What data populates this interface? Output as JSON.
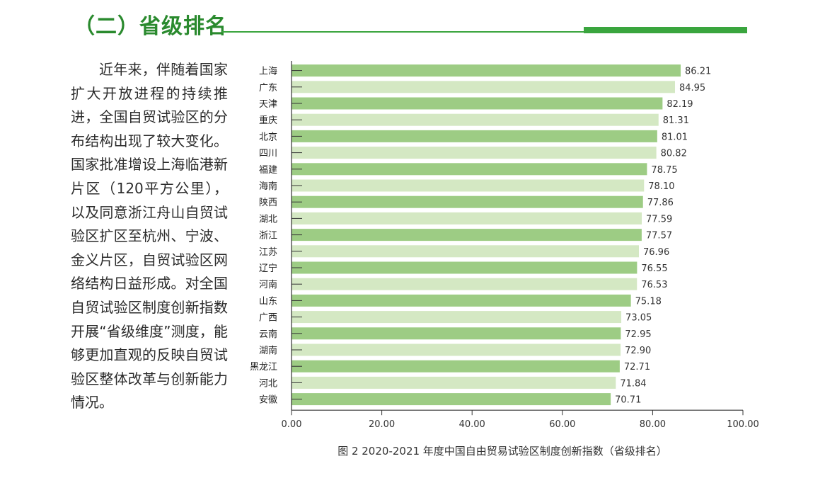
{
  "section": {
    "heading": "（二）省级排名",
    "paragraph": "近年来，伴随着国家扩大开放进程的持续推进，全国自贸试验区的分布结构出现了较大变化。国家批准增设上海临港新片区（120平方公里），以及同意浙江舟山自贸试验区扩区至杭州、宁波、金义片区，自贸试验区网络结构日益形成。对全国自贸试验区制度创新指数开展“省级维度”测度，能够更加直观的反映自贸试验区整体改革与创新能力情况。"
  },
  "colors": {
    "accent": "#3aa53e",
    "bar_dark": "#9dcc84",
    "bar_light": "#d4e8c3"
  },
  "chart_data": {
    "type": "bar",
    "orientation": "horizontal",
    "title": "图 2 2020-2021 年度中国自由贸易试验区制度创新指数（省级排名）",
    "categories": [
      "上海",
      "广东",
      "天津",
      "重庆",
      "北京",
      "四川",
      "福建",
      "海南",
      "陕西",
      "湖北",
      "浙江",
      "江苏",
      "辽宁",
      "河南",
      "山东",
      "广西",
      "云南",
      "湖南",
      "黑龙江",
      "河北",
      "安徽"
    ],
    "values": [
      86.21,
      84.95,
      82.19,
      81.31,
      81.01,
      80.82,
      78.75,
      78.1,
      77.86,
      77.59,
      77.57,
      76.96,
      76.55,
      76.53,
      75.18,
      73.05,
      72.95,
      72.9,
      72.71,
      71.84,
      70.71
    ],
    "value_labels": [
      "86.21",
      "84.95",
      "82.19",
      "81.31",
      "81.01",
      "80.82",
      "78.75",
      "78.10",
      "77.86",
      "77.59",
      "77.57",
      "76.96",
      "76.55",
      "76.53",
      "75.18",
      "73.05",
      "72.95",
      "72.90",
      "72.71",
      "71.84",
      "70.71"
    ],
    "xlim": [
      0,
      100
    ],
    "x_ticks": [
      0,
      20,
      40,
      60,
      80,
      100
    ],
    "x_tick_labels": [
      "0.00",
      "20.00",
      "40.00",
      "60.00",
      "80.00",
      "100.00"
    ],
    "grid": false,
    "legend": "none",
    "xlabel": "",
    "ylabel": ""
  }
}
